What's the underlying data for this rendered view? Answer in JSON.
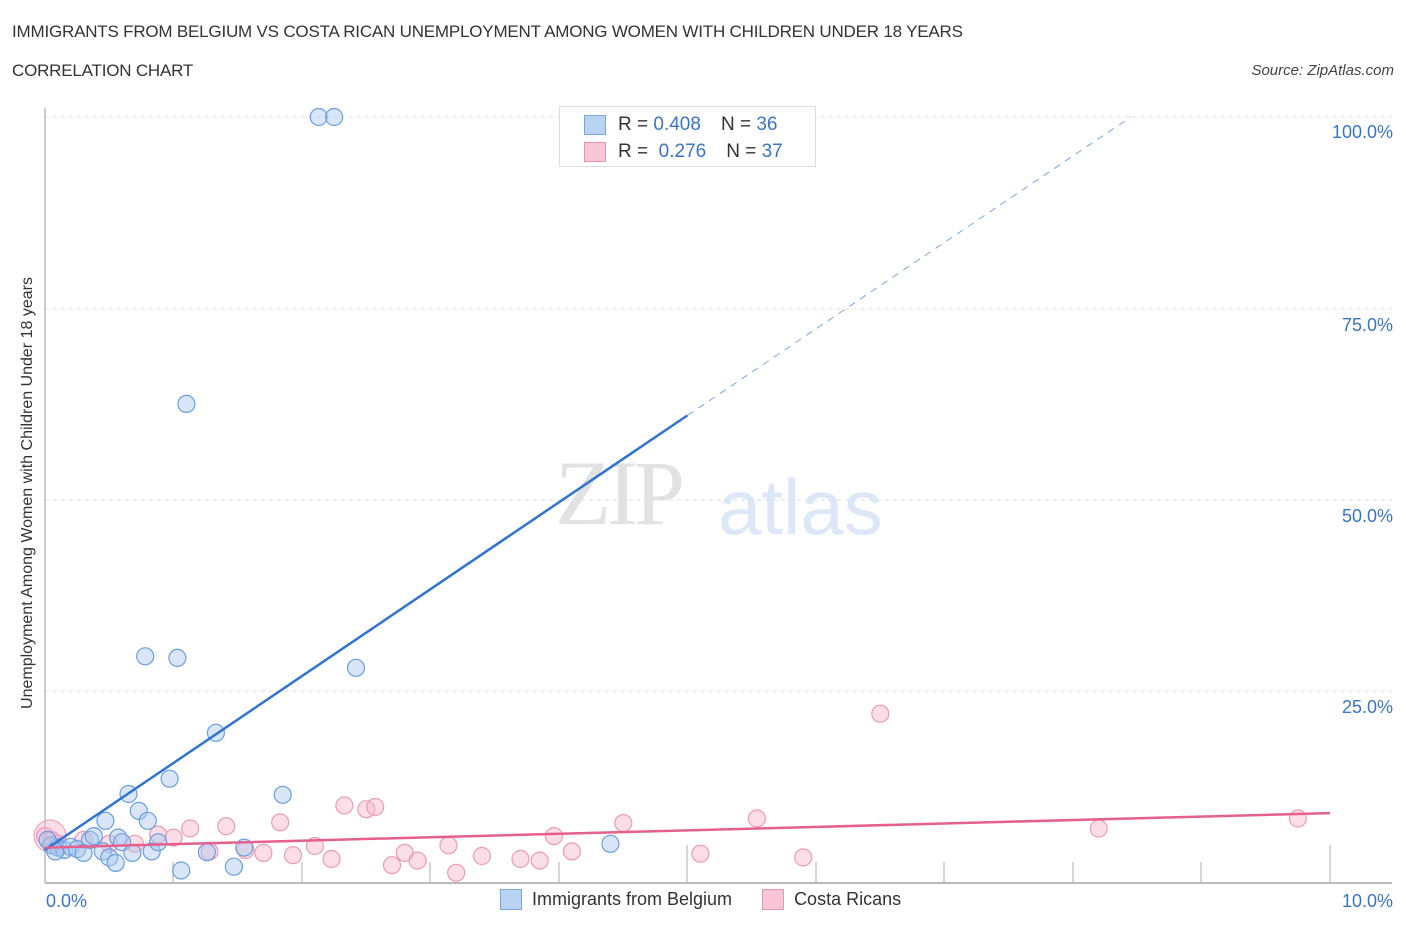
{
  "header": {
    "title": "IMMIGRANTS FROM BELGIUM VS COSTA RICAN UNEMPLOYMENT AMONG WOMEN WITH CHILDREN UNDER 18 YEARS",
    "subtitle": "CORRELATION CHART",
    "source": "Source: ZipAtlas.com"
  },
  "watermark": {
    "zip": "ZIP",
    "atlas": "atlas"
  },
  "legend": {
    "series": [
      {
        "r_label": "R =",
        "r_value": "0.408",
        "n_label": "N =",
        "n_value": "36",
        "color": "#b9d3f3",
        "border": "#7aa7e0"
      },
      {
        "r_label": "R =",
        "r_value": "0.276",
        "n_label": "N =",
        "n_value": "37",
        "color": "#f8c6d6",
        "border": "#e994b0"
      }
    ]
  },
  "bottom_legend": [
    {
      "label": "Immigrants from Belgium",
      "color": "#b9d3f3",
      "border": "#7aa7e0"
    },
    {
      "label": "Costa Ricans",
      "color": "#f8c6d6",
      "border": "#e994b0"
    }
  ],
  "axes": {
    "ylabel": "Unemployment Among Women with Children Under 18 years",
    "y_ticks": [
      "100.0%",
      "75.0%",
      "50.0%",
      "25.0%"
    ],
    "x_ticks": [
      "0.0%",
      "10.0%"
    ]
  },
  "chart_data": {
    "type": "scatter",
    "title": "IMMIGRANTS FROM BELGIUM VS COSTA RICAN UNEMPLOYMENT AMONG WOMEN WITH CHILDREN UNDER 18 YEARS",
    "subtitle": "CORRELATION CHART",
    "xlabel": "",
    "ylabel": "Unemployment Among Women with Children Under 18 years",
    "xlim": [
      0,
      10
    ],
    "ylim": [
      0,
      100
    ],
    "x_unit": "%",
    "y_unit": "%",
    "grid": true,
    "legend_position": "top-center",
    "series": [
      {
        "name": "Immigrants from Belgium",
        "color": "#6a9fe0",
        "R": 0.408,
        "N": 36,
        "trend": {
          "x0": 0.0,
          "y0": 4.2,
          "x1": 5.0,
          "y1": 61.0,
          "dashed_to_x": 8.45,
          "dashed_to_y": 100.0
        },
        "points": [
          [
            0.05,
            4.8
          ],
          [
            0.1,
            4.5
          ],
          [
            0.15,
            4.2
          ],
          [
            0.2,
            4.6
          ],
          [
            0.25,
            4.3
          ],
          [
            0.3,
            3.8
          ],
          [
            0.35,
            5.5
          ],
          [
            0.38,
            6.0
          ],
          [
            0.45,
            4.0
          ],
          [
            0.47,
            8.0
          ],
          [
            0.5,
            3.2
          ],
          [
            0.55,
            2.5
          ],
          [
            0.57,
            5.8
          ],
          [
            0.6,
            5.2
          ],
          [
            0.65,
            11.5
          ],
          [
            0.68,
            3.8
          ],
          [
            0.73,
            9.3
          ],
          [
            0.78,
            29.5
          ],
          [
            0.8,
            8.0
          ],
          [
            0.83,
            4.0
          ],
          [
            0.88,
            5.2
          ],
          [
            0.97,
            13.5
          ],
          [
            1.03,
            29.3
          ],
          [
            1.06,
            1.5
          ],
          [
            1.1,
            62.5
          ],
          [
            1.26,
            3.9
          ],
          [
            1.33,
            19.5
          ],
          [
            1.47,
            2.0
          ],
          [
            1.55,
            4.5
          ],
          [
            1.85,
            11.4
          ],
          [
            2.13,
            100.0
          ],
          [
            2.25,
            100.0
          ],
          [
            2.42,
            28.0
          ],
          [
            4.4,
            5.0
          ],
          [
            0.02,
            5.5
          ],
          [
            0.08,
            4.0
          ]
        ]
      },
      {
        "name": "Costa Ricans",
        "color": "#ee8fb0",
        "R": 0.276,
        "N": 37,
        "trend": {
          "x0": 0.0,
          "y0": 4.5,
          "x1": 10.0,
          "y1": 9.0
        },
        "points": [
          [
            0.05,
            5.5
          ],
          [
            0.1,
            5.0
          ],
          [
            0.3,
            5.5
          ],
          [
            0.5,
            5.0
          ],
          [
            0.7,
            5.0
          ],
          [
            0.88,
            6.2
          ],
          [
            1.0,
            5.8
          ],
          [
            1.13,
            7.0
          ],
          [
            1.28,
            4.0
          ],
          [
            1.41,
            7.3
          ],
          [
            1.56,
            4.2
          ],
          [
            1.7,
            3.8
          ],
          [
            1.83,
            7.8
          ],
          [
            1.93,
            3.5
          ],
          [
            2.1,
            4.7
          ],
          [
            2.23,
            3.0
          ],
          [
            2.33,
            10.0
          ],
          [
            2.5,
            9.5
          ],
          [
            2.57,
            9.8
          ],
          [
            2.7,
            2.2
          ],
          [
            2.8,
            3.8
          ],
          [
            2.9,
            2.8
          ],
          [
            3.14,
            4.8
          ],
          [
            3.2,
            1.2
          ],
          [
            3.4,
            3.4
          ],
          [
            3.7,
            3.0
          ],
          [
            3.85,
            2.8
          ],
          [
            3.96,
            6.0
          ],
          [
            4.1,
            4.0
          ],
          [
            4.5,
            7.7
          ],
          [
            5.1,
            3.7
          ],
          [
            5.54,
            8.3
          ],
          [
            5.9,
            3.2
          ],
          [
            6.5,
            22.0
          ],
          [
            8.2,
            7.0
          ],
          [
            9.75,
            8.3
          ],
          [
            0.0,
            6.0
          ]
        ]
      }
    ]
  }
}
